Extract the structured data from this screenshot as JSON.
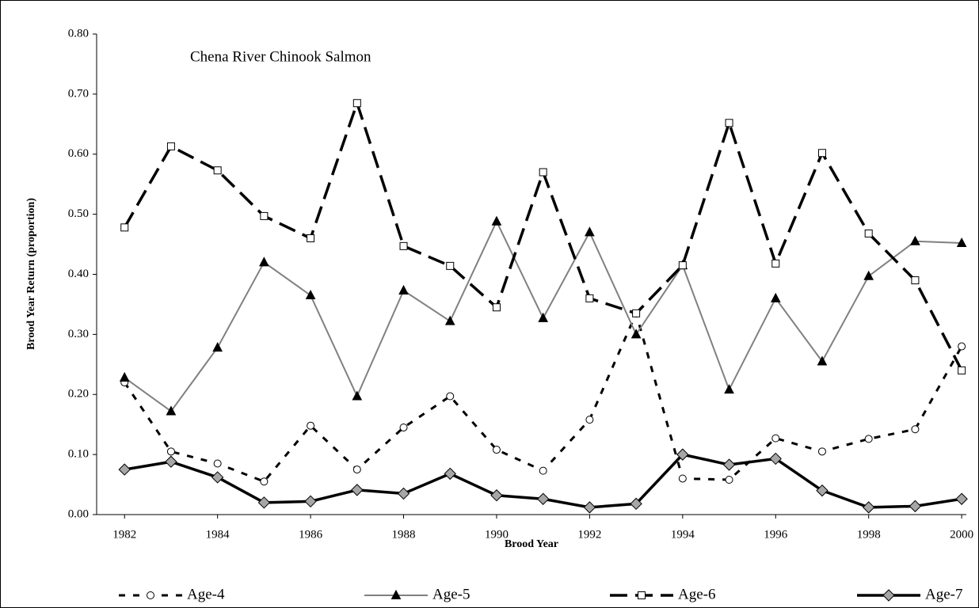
{
  "chart_data": {
    "type": "line",
    "annotation": "Chena River Chinook Salmon",
    "x_label": "Brood Year",
    "y_label": "Brood Year Return (proportion)",
    "x": [
      1982,
      1983,
      1984,
      1985,
      1986,
      1987,
      1988,
      1989,
      1990,
      1991,
      1992,
      1993,
      1994,
      1995,
      1996,
      1997,
      1998,
      1999,
      2000
    ],
    "xlim": [
      1981.4,
      2000.1
    ],
    "xticks": [
      1982,
      1984,
      1986,
      1988,
      1990,
      1992,
      1994,
      1996,
      1998,
      2000
    ],
    "ylim": [
      0,
      0.8
    ],
    "yticks": [
      {
        "value": 0,
        "label": "0.00"
      },
      {
        "value": 0.1,
        "label": "0.10"
      },
      {
        "value": 0.2,
        "label": "0.20"
      },
      {
        "value": 0.3,
        "label": "0.30"
      },
      {
        "value": 0.4,
        "label": "0.40"
      },
      {
        "value": 0.5,
        "label": "0.50"
      },
      {
        "value": 0.6,
        "label": "0.60"
      },
      {
        "value": 0.7,
        "label": "0.70"
      },
      {
        "value": 0.8,
        "label": "0.80"
      }
    ],
    "grid": false,
    "legend": "bottom",
    "series": [
      {
        "name": "Age-4",
        "color": "#000000",
        "line_width": 3,
        "dash": "8,10",
        "marker": "circle",
        "marker_fill": "#ffffff",
        "values": [
          0.22,
          0.105,
          0.085,
          0.055,
          0.148,
          0.075,
          0.145,
          0.197,
          0.108,
          0.073,
          0.158,
          0.335,
          0.06,
          0.058,
          0.127,
          0.105,
          0.126,
          0.142,
          0.28
        ]
      },
      {
        "name": "Age-5",
        "color": "#808080",
        "line_width": 2,
        "dash": "none",
        "marker": "triangle",
        "marker_fill": "#000000",
        "values": [
          0.228,
          0.172,
          0.278,
          0.42,
          0.365,
          0.197,
          0.373,
          0.322,
          0.488,
          0.327,
          0.47,
          0.3,
          0.415,
          0.208,
          0.36,
          0.255,
          0.397,
          0.455,
          0.452
        ]
      },
      {
        "name": "Age-6",
        "color": "#000000",
        "line_width": 3.5,
        "dash": "22,10",
        "marker": "square",
        "marker_fill": "#ffffff",
        "values": [
          0.478,
          0.613,
          0.573,
          0.497,
          0.46,
          0.685,
          0.447,
          0.414,
          0.345,
          0.57,
          0.36,
          0.335,
          0.415,
          0.652,
          0.418,
          0.602,
          0.468,
          0.39,
          0.24
        ]
      },
      {
        "name": "Age-7",
        "color": "#000000",
        "line_width": 3.5,
        "dash": "none",
        "marker": "diamond",
        "marker_fill": "#a6a6a6",
        "values": [
          0.075,
          0.088,
          0.062,
          0.02,
          0.022,
          0.041,
          0.035,
          0.068,
          0.032,
          0.026,
          0.012,
          0.018,
          0.1,
          0.083,
          0.093,
          0.04,
          0.012,
          0.014,
          0.026
        ]
      }
    ]
  }
}
